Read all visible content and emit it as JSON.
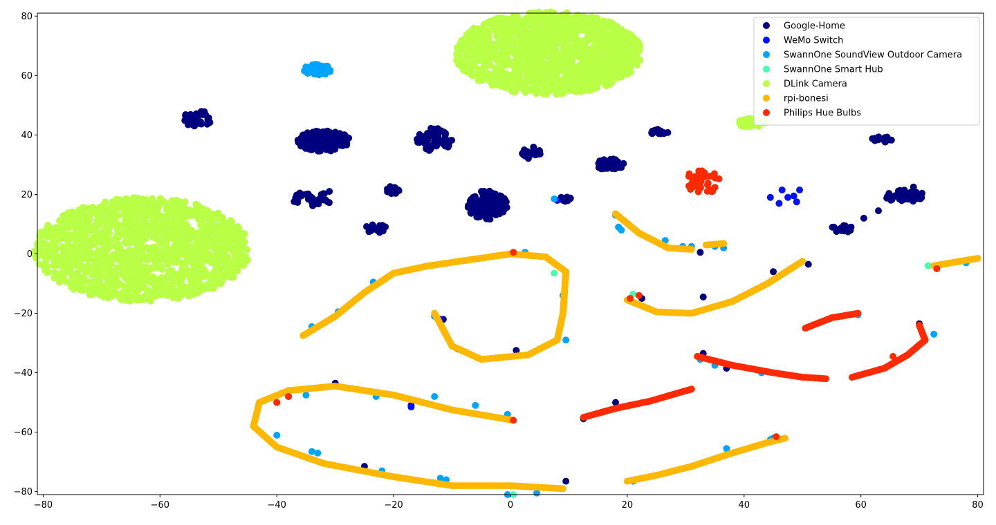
{
  "chart_data": {
    "type": "scatter",
    "title": "",
    "xlabel": "",
    "ylabel": "",
    "xlim": [
      -81,
      81
    ],
    "ylim": [
      -81,
      81
    ],
    "xticks": [
      -80,
      -60,
      -40,
      -20,
      0,
      20,
      40,
      60,
      80
    ],
    "yticks": [
      -80,
      -60,
      -40,
      -20,
      0,
      20,
      40,
      60,
      80
    ],
    "grid": false,
    "legend_position": "top-right",
    "series": [
      {
        "name": "Google-Home",
        "color": "#00007f",
        "clusters": [
          {
            "cx": -53.5,
            "cy": 45.5,
            "rx": 2.5,
            "ry": 2.8,
            "n": 40
          },
          {
            "cx": -32,
            "cy": 38,
            "rx": 4.5,
            "ry": 3.5,
            "n": 160
          },
          {
            "cx": -34,
            "cy": 18.5,
            "rx": 3.5,
            "ry": 2.5,
            "n": 30
          },
          {
            "cx": -20,
            "cy": 21.5,
            "rx": 1.3,
            "ry": 1.3,
            "n": 25
          },
          {
            "cx": -23,
            "cy": 8.5,
            "rx": 2,
            "ry": 1.5,
            "n": 18
          },
          {
            "cx": -13,
            "cy": 38.5,
            "rx": 3,
            "ry": 4,
            "n": 60
          },
          {
            "cx": -4,
            "cy": 16.5,
            "rx": 3.5,
            "ry": 5,
            "n": 120
          },
          {
            "cx": 3.5,
            "cy": 34,
            "rx": 1.8,
            "ry": 2,
            "n": 25
          },
          {
            "cx": 9.5,
            "cy": 18.5,
            "rx": 1,
            "ry": 1,
            "n": 10
          },
          {
            "cx": 17,
            "cy": 30,
            "rx": 2.5,
            "ry": 2,
            "n": 40
          },
          {
            "cx": 25.5,
            "cy": 41,
            "rx": 1.5,
            "ry": 1,
            "n": 18
          },
          {
            "cx": 63.5,
            "cy": 38.5,
            "rx": 2,
            "ry": 1,
            "n": 14
          },
          {
            "cx": 67.5,
            "cy": 19.5,
            "rx": 3.5,
            "ry": 2,
            "n": 50
          },
          {
            "cx": 56.5,
            "cy": 8.5,
            "rx": 2,
            "ry": 1.5,
            "n": 25
          }
        ],
        "points": [
          [
            -31,
            21
          ],
          [
            60.5,
            12
          ],
          [
            63,
            14.5
          ],
          [
            69,
            22.5
          ],
          [
            32.5,
            0.5
          ],
          [
            51,
            -3.5
          ],
          [
            33,
            -14.5
          ],
          [
            22.5,
            -15
          ],
          [
            -11.5,
            -22
          ],
          [
            -9,
            -32
          ],
          [
            1,
            -32.5
          ],
          [
            -30,
            -43.5
          ],
          [
            -17,
            -51
          ],
          [
            -40,
            -50
          ],
          [
            -25,
            -71.5
          ],
          [
            9.5,
            -76.5
          ],
          [
            33,
            -33.5
          ],
          [
            37,
            -38.5
          ],
          [
            31,
            -71.5
          ],
          [
            18,
            -50
          ],
          [
            45,
            -6
          ],
          [
            12.5,
            -55.5
          ],
          [
            70,
            -23.5
          ]
        ]
      },
      {
        "name": "WeMo Switch",
        "color": "#0010ff",
        "clusters": [],
        "points": [
          [
            44.5,
            19
          ],
          [
            46.5,
            21.5
          ],
          [
            47.5,
            19
          ],
          [
            48.5,
            19.5
          ],
          [
            46,
            17
          ],
          [
            49.5,
            21.5
          ],
          [
            49,
            17.5
          ],
          [
            8,
            18
          ],
          [
            -12,
            -22
          ],
          [
            -10,
            -31
          ],
          [
            -17,
            -51.5
          ]
        ]
      },
      {
        "name": "SwannOne SoundView Outdoor Camera",
        "color": "#00a4ff",
        "clusters": [
          {
            "cx": -33,
            "cy": 62,
            "rx": 2.5,
            "ry": 1.8,
            "n": 60
          }
        ],
        "points": [
          [
            7.5,
            18.5
          ],
          [
            18,
            13
          ],
          [
            18.5,
            9
          ],
          [
            19,
            8
          ],
          [
            26.5,
            4.5
          ],
          [
            29.5,
            2.5
          ],
          [
            31,
            2.5
          ],
          [
            36.5,
            2
          ],
          [
            35,
            2.5
          ],
          [
            -13,
            -21
          ],
          [
            -23.5,
            -9.5
          ],
          [
            -29.5,
            -19.5
          ],
          [
            -34,
            -24.5
          ],
          [
            -13,
            -48
          ],
          [
            -23,
            -48
          ],
          [
            -35,
            -47.5
          ],
          [
            -38,
            -48
          ],
          [
            -6,
            -51
          ],
          [
            -0.5,
            -54
          ],
          [
            -40,
            -61
          ],
          [
            -33,
            -67
          ],
          [
            -34,
            -66.5
          ],
          [
            -22,
            -73
          ],
          [
            -12,
            -75.5
          ],
          [
            -11,
            -76
          ],
          [
            -0.5,
            -81
          ],
          [
            4.5,
            -80.5
          ],
          [
            9.5,
            -29
          ],
          [
            9,
            -14
          ],
          [
            32.5,
            -35.5
          ],
          [
            35,
            -37.5
          ],
          [
            37,
            -65.5
          ],
          [
            43,
            -40
          ],
          [
            44.5,
            -62.5
          ],
          [
            45,
            -62
          ],
          [
            59.5,
            -20.5
          ],
          [
            72.5,
            -27
          ],
          [
            78,
            -3
          ],
          [
            21,
            -76.5
          ],
          [
            2.5,
            0.5
          ]
        ]
      },
      {
        "name": "SwannOne Smart Hub",
        "color": "#46ffad",
        "clusters": [],
        "points": [
          [
            7.5,
            -6.5
          ],
          [
            -10,
            -31
          ],
          [
            71.5,
            -4
          ],
          [
            0.5,
            -81
          ],
          [
            21,
            -13.5
          ]
        ]
      },
      {
        "name": "DLink Camera",
        "color": "#b8ff46",
        "clusters": [
          {
            "cx": -63,
            "cy": 1.5,
            "rx": 18.5,
            "ry": 17.5,
            "n": 1400
          },
          {
            "cx": 6.5,
            "cy": 67.5,
            "rx": 16,
            "ry": 14,
            "n": 1300
          },
          {
            "cx": 41.5,
            "cy": 44,
            "rx": 2.5,
            "ry": 1.8,
            "n": 30
          }
        ],
        "points": []
      },
      {
        "name": "rpi-bonesi",
        "color": "#ffb800",
        "curves": [
          [
            [
              -35.5,
              -27.5
            ],
            [
              -30,
              -21
            ],
            [
              -25,
              -13
            ],
            [
              -20,
              -6.5
            ],
            [
              -14,
              -4
            ],
            [
              -7,
              -2
            ],
            [
              0,
              0
            ],
            [
              6,
              -1
            ],
            [
              9.5,
              -6
            ],
            [
              9,
              -20
            ],
            [
              8,
              -29
            ],
            [
              3,
              -34
            ],
            [
              -5,
              -35.5
            ],
            [
              -10,
              -31
            ],
            [
              -13,
              -20
            ]
          ],
          [
            [
              18,
              13.5
            ],
            [
              22,
              7
            ],
            [
              27,
              2
            ],
            [
              31,
              1.5
            ]
          ],
          [
            [
              20,
              -15.5
            ],
            [
              25,
              -19.5
            ],
            [
              31,
              -20
            ],
            [
              38,
              -16
            ],
            [
              44,
              -10
            ],
            [
              50,
              -2.5
            ]
          ],
          [
            [
              72.5,
              -4
            ],
            [
              80,
              -1.5
            ]
          ],
          [
            [
              0.5,
              -56
            ],
            [
              -10,
              -52.5
            ],
            [
              -20,
              -47.5
            ],
            [
              -30,
              -44.5
            ],
            [
              -38,
              -46
            ],
            [
              -43,
              -50
            ],
            [
              -44,
              -58
            ],
            [
              -40,
              -65
            ],
            [
              -32,
              -70.5
            ],
            [
              -20,
              -75
            ],
            [
              -10,
              -78
            ],
            [
              0,
              -78
            ],
            [
              9,
              -79
            ]
          ],
          [
            [
              20,
              -76.5
            ],
            [
              25,
              -74.5
            ],
            [
              31,
              -71.5
            ],
            [
              38,
              -67
            ],
            [
              44,
              -63.5
            ],
            [
              47,
              -62
            ]
          ],
          [
            [
              33.5,
              3
            ],
            [
              36.5,
              3.5
            ]
          ]
        ],
        "points": []
      },
      {
        "name": "Philips Hue Bulbs",
        "color": "#ff2a00",
        "clusters": [
          {
            "cx": 33,
            "cy": 24.5,
            "rx": 3.5,
            "ry": 4,
            "n": 40
          }
        ],
        "curves": [
          [
            [
              12.5,
              -55
            ],
            [
              18,
              -52
            ],
            [
              24,
              -49.5
            ],
            [
              31,
              -45.5
            ]
          ],
          [
            [
              32,
              -34.5
            ],
            [
              38,
              -37.5
            ],
            [
              45,
              -40
            ],
            [
              50,
              -41.5
            ],
            [
              54,
              -42
            ]
          ],
          [
            [
              50.5,
              -25
            ],
            [
              55,
              -21.5
            ],
            [
              59.5,
              -20
            ]
          ],
          [
            [
              58.5,
              -41.5
            ],
            [
              64,
              -38.5
            ],
            [
              68,
              -34
            ],
            [
              71,
              -29
            ],
            [
              70,
              -24
            ]
          ]
        ],
        "points": [
          [
            0.5,
            0.5
          ],
          [
            20.5,
            -15
          ],
          [
            22,
            -14
          ],
          [
            -40,
            -50
          ],
          [
            -38,
            -48
          ],
          [
            0.5,
            -56
          ],
          [
            45.5,
            -61.5
          ],
          [
            65.5,
            -34.5
          ],
          [
            73,
            -5
          ]
        ]
      }
    ]
  }
}
